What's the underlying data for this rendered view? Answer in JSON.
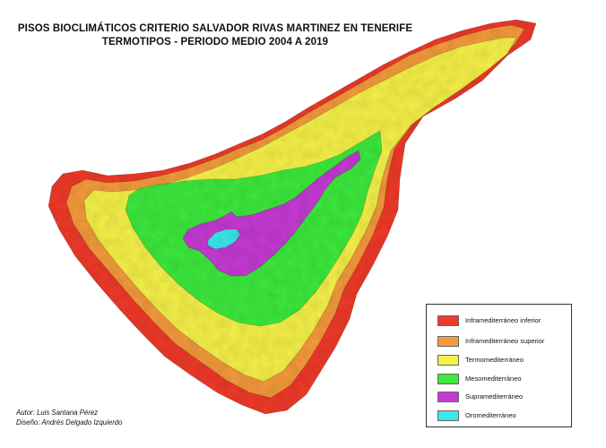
{
  "title": {
    "line1": "PISOS BIOCLIMÁTICOS CRITERIO SALVADOR RIVAS MARTINEZ EN TENERIFE",
    "line2": "TERMOTIPOS - PERIODO MEDIO 2004 A 2019"
  },
  "legend": {
    "items": [
      {
        "label": "Inframediterráneo inferior",
        "color": "#ee3b2a"
      },
      {
        "label": "Inframediterráneo superior",
        "color": "#f39a3c"
      },
      {
        "label": "Termomediterráneo",
        "color": "#f4f04a"
      },
      {
        "label": "Mesomediterráneo",
        "color": "#3ee83c"
      },
      {
        "label": "Supramediterráneo",
        "color": "#c43bd3"
      },
      {
        "label": "Oromediterráneo",
        "color": "#3ee7ea"
      }
    ]
  },
  "credits": {
    "author": "Autor: Luis Santana Pérez",
    "design": "Diseño: Andrés Delgado Izquierdo"
  }
}
